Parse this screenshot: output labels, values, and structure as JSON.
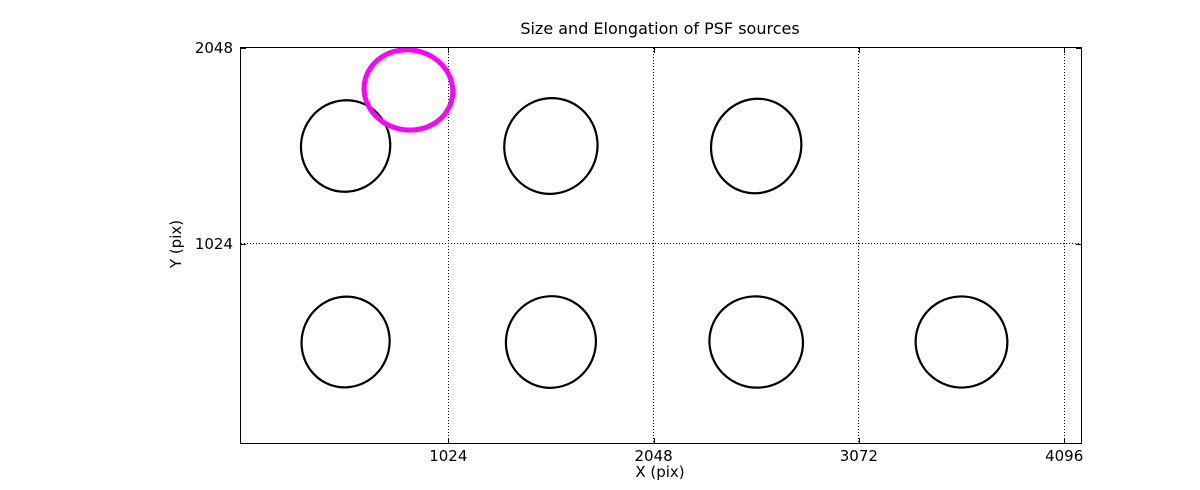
{
  "chart_data": {
    "type": "scatter",
    "title": "Size and Elongation of PSF sources",
    "xlabel": "X (pix)",
    "ylabel": "Y (pix)",
    "xlim": [
      -10,
      4180
    ],
    "ylim": [
      -16,
      2048
    ],
    "xticks": [
      1024,
      2048,
      3072,
      4096
    ],
    "yticks": [
      1024,
      2048
    ],
    "grid": "dotted",
    "legend": "none",
    "colors": {
      "source": "#000000",
      "highlight": "#ff00ff",
      "background": "#ffffff"
    },
    "ellipses": [
      {
        "x": 512,
        "y": 1536,
        "semi_x": 222,
        "semi_y": 240,
        "angle": 18,
        "color": "#000000",
        "line_width": 2.2,
        "role": "psf-source"
      },
      {
        "x": 1536,
        "y": 1536,
        "semi_x": 232,
        "semi_y": 251,
        "angle": 18,
        "color": "#000000",
        "line_width": 2.2,
        "role": "psf-source"
      },
      {
        "x": 2560,
        "y": 1536,
        "semi_x": 224,
        "semi_y": 248,
        "angle": 18,
        "color": "#000000",
        "line_width": 2.2,
        "role": "psf-source"
      },
      {
        "x": 512,
        "y": 512,
        "semi_x": 219,
        "semi_y": 238,
        "angle": 18,
        "color": "#000000",
        "line_width": 2.2,
        "role": "psf-source"
      },
      {
        "x": 1536,
        "y": 512,
        "semi_x": 224,
        "semi_y": 240,
        "angle": 18,
        "color": "#000000",
        "line_width": 2.2,
        "role": "psf-source"
      },
      {
        "x": 2560,
        "y": 512,
        "semi_x": 234,
        "semi_y": 238,
        "angle": 18,
        "color": "#000000",
        "line_width": 2.2,
        "role": "psf-source"
      },
      {
        "x": 3584,
        "y": 512,
        "semi_x": 229,
        "semi_y": 238,
        "angle": 18,
        "color": "#000000",
        "line_width": 2.2,
        "role": "psf-source"
      },
      {
        "x": 825,
        "y": 1829,
        "semi_x": 222,
        "semi_y": 209,
        "angle": 10,
        "color": "#ff00ff",
        "line_width": 5,
        "role": "highlighted-psf-source"
      }
    ]
  }
}
